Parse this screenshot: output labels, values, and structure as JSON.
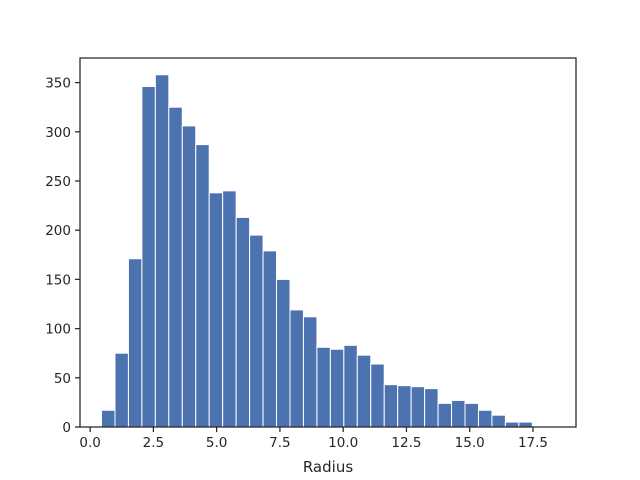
{
  "chart_data": {
    "type": "bar",
    "subtype": "histogram",
    "title": "",
    "xlabel": "Radius",
    "ylabel": "",
    "xlim": [
      -0.4,
      19.2
    ],
    "ylim": [
      0,
      375
    ],
    "x_ticks": [
      0.0,
      2.5,
      5.0,
      7.5,
      10.0,
      12.5,
      15.0,
      17.5
    ],
    "x_tick_labels": [
      "0.0",
      "2.5",
      "5.0",
      "7.5",
      "10.0",
      "12.5",
      "15.0",
      "17.5"
    ],
    "y_ticks": [
      0,
      50,
      100,
      150,
      200,
      250,
      300,
      350
    ],
    "y_tick_labels": [
      "0",
      "50",
      "100",
      "150",
      "200",
      "250",
      "300",
      "350"
    ],
    "grid": false,
    "bar_color": "#4c72b0",
    "edge_color": "#ffffff",
    "bins": {
      "start": 0.45,
      "width": 0.532,
      "counts": [
        17,
        75,
        171,
        346,
        358,
        325,
        306,
        287,
        238,
        240,
        213,
        195,
        179,
        150,
        119,
        112,
        81,
        79,
        83,
        73,
        64,
        43,
        42,
        41,
        39,
        24,
        27,
        24,
        17,
        12,
        5,
        5
      ]
    }
  }
}
